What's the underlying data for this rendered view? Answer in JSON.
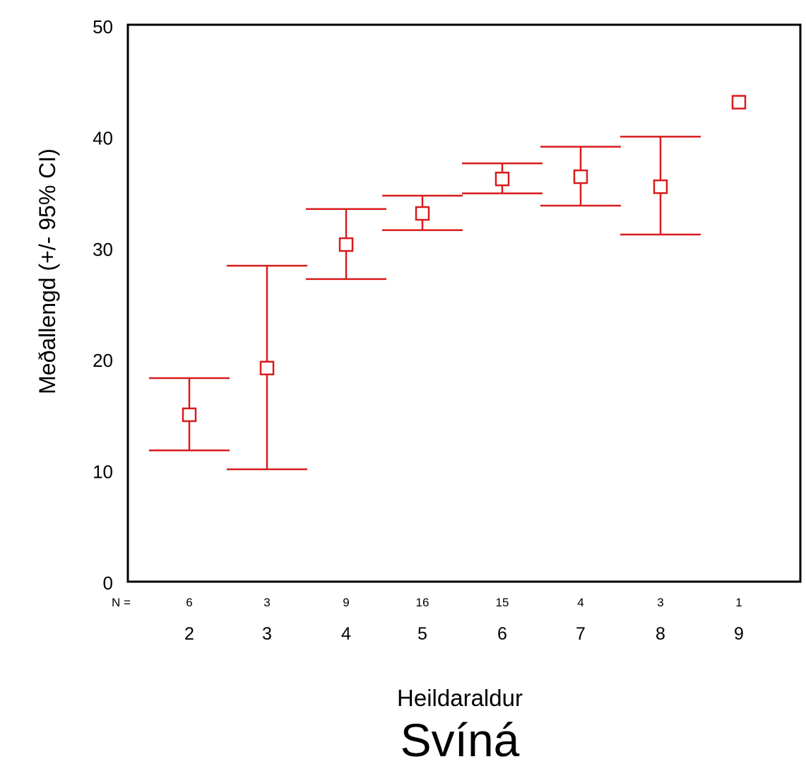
{
  "chart_data": {
    "type": "errorbar",
    "title": "Svíná",
    "xlabel": "Heildaraldur",
    "ylabel": "Meðallengd (+/- 95% CI)",
    "ylim": [
      0,
      50
    ],
    "yticks": [
      0,
      10,
      20,
      30,
      40,
      50
    ],
    "grid": false,
    "legend": "none",
    "n_label": "N =",
    "categories": [
      "2",
      "3",
      "4",
      "5",
      "6",
      "7",
      "8",
      "9"
    ],
    "n_values": [
      "6",
      "3",
      "9",
      "16",
      "15",
      "4",
      "3",
      "1"
    ],
    "means": [
      15.0,
      19.2,
      30.3,
      33.1,
      36.2,
      36.4,
      35.5,
      43.1
    ],
    "ci_lower": [
      11.8,
      10.1,
      27.2,
      31.6,
      34.9,
      33.8,
      31.2,
      null
    ],
    "ci_upper": [
      18.3,
      28.4,
      33.5,
      34.7,
      37.6,
      39.1,
      40.0,
      null
    ],
    "colors": {
      "series": "#d81b1b",
      "axis": "#000000"
    }
  }
}
